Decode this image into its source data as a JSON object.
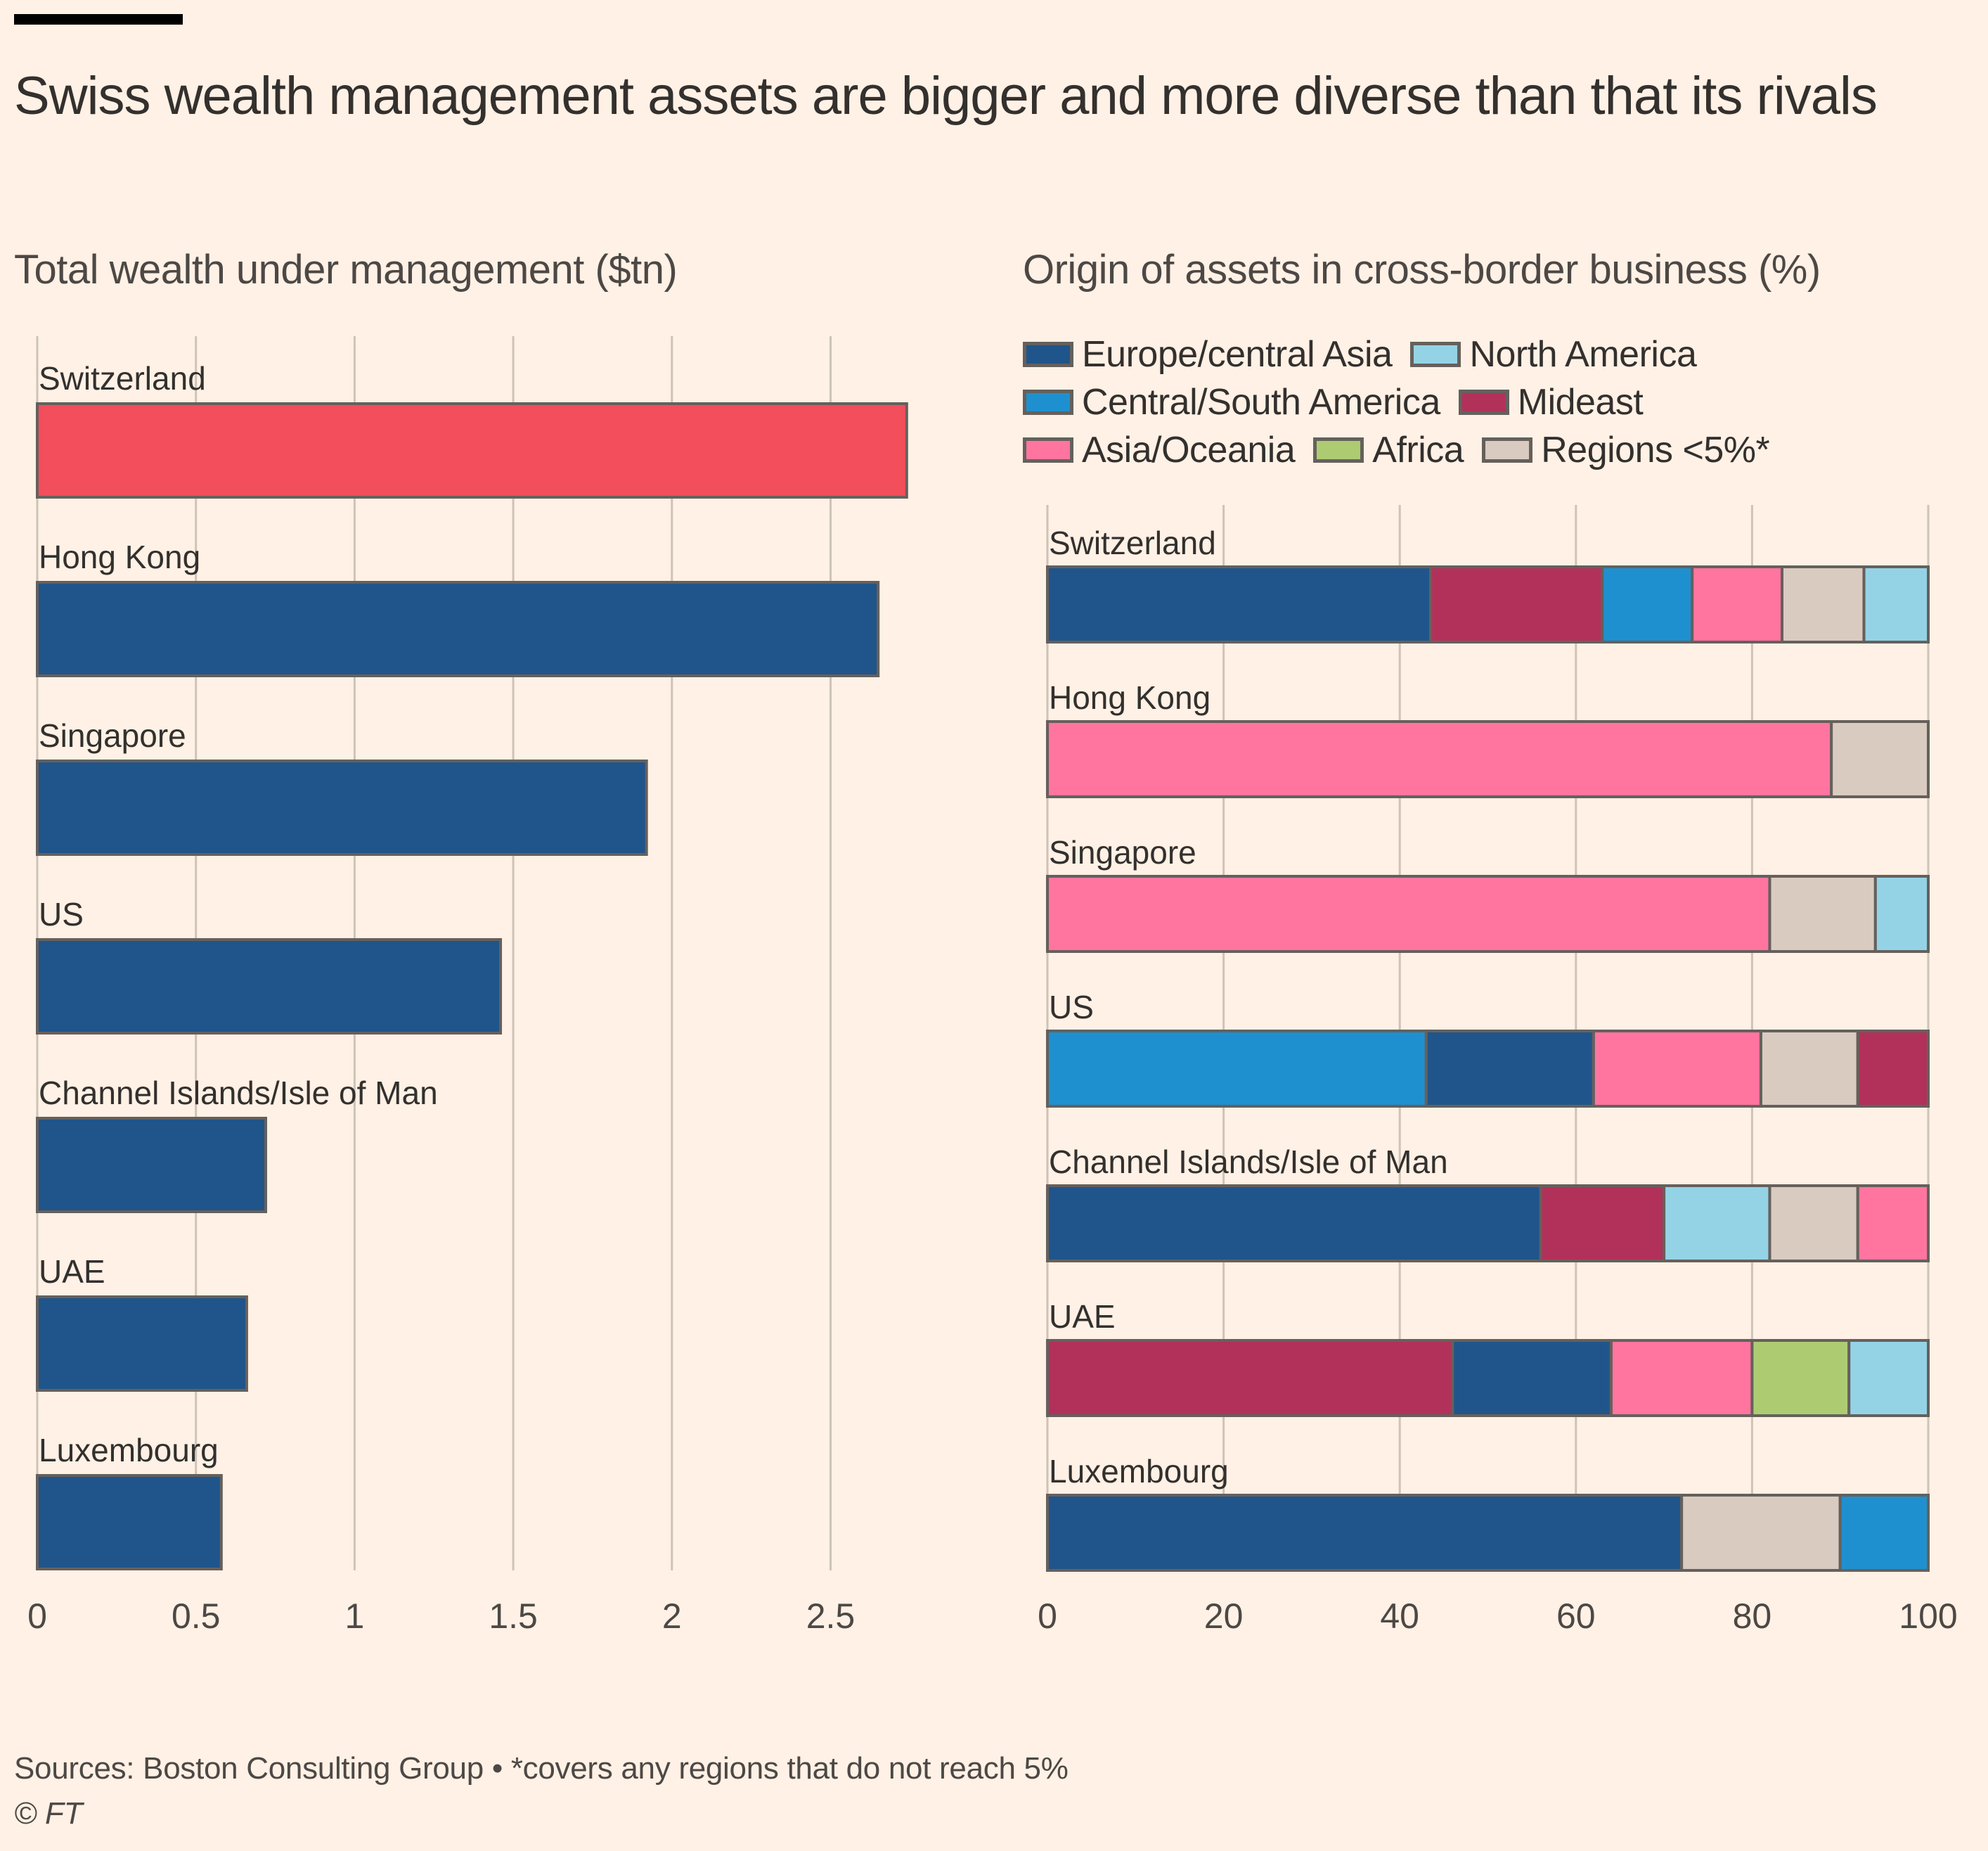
{
  "title": "Swiss wealth management assets are bigger and more diverse than that its rivals",
  "footer": {
    "sources": "Sources: Boston Consulting Group • *covers any regions that do not reach 5%",
    "copyright": "© FT"
  },
  "colors": {
    "background": "#fff1e5",
    "highlight": "#f24e5c",
    "primary": "#20558b",
    "gridline": "#cec3b7",
    "bar_stroke": "#66605c"
  },
  "legend": [
    {
      "key": "europe",
      "label": "Europe/central Asia",
      "color": "#20558b"
    },
    {
      "key": "north_america",
      "label": "North America",
      "color": "#94d3e6"
    },
    {
      "key": "cs_america",
      "label": "Central/South America",
      "color": "#1f90cf"
    },
    {
      "key": "mideast",
      "label": "Mideast",
      "color": "#b2315b"
    },
    {
      "key": "asia",
      "label": "Asia/Oceania",
      "color": "#ff75a0"
    },
    {
      "key": "africa",
      "label": "Africa",
      "color": "#adcc72"
    },
    {
      "key": "regions",
      "label": "Regions <5%*",
      "color": "#d9cbc0"
    }
  ],
  "chart_data": [
    {
      "type": "bar",
      "orientation": "horizontal",
      "title": "Total wealth under management ($tn)",
      "xlabel": "",
      "ylabel": "",
      "xlim": [
        0,
        2.85
      ],
      "xticks": [
        0,
        0.5,
        1,
        1.5,
        2,
        2.5
      ],
      "xtick_labels": [
        "0",
        "0.5",
        "1",
        "1.5",
        "2",
        "2.5"
      ],
      "grid": true,
      "categories": [
        "Switzerland",
        "Hong Kong",
        "Singapore",
        "US",
        "Channel Islands/Isle of Man",
        "UAE",
        "Luxembourg"
      ],
      "values": [
        2.74,
        2.65,
        1.92,
        1.46,
        0.72,
        0.66,
        0.58
      ],
      "highlight": "Switzerland"
    },
    {
      "type": "bar",
      "orientation": "horizontal",
      "stacked": true,
      "title": "Origin of assets in cross-border business (%)",
      "xlabel": "",
      "ylabel": "",
      "xlim": [
        0,
        100
      ],
      "xticks": [
        0,
        20,
        40,
        60,
        80,
        100
      ],
      "xtick_labels": [
        "0",
        "20",
        "40",
        "60",
        "80",
        "100"
      ],
      "grid": true,
      "legend_position": "top-left",
      "categories": [
        "Switzerland",
        "Hong Kong",
        "Singapore",
        "US",
        "Channel Islands/Isle of Man",
        "UAE",
        "Luxembourg"
      ],
      "stacks": [
        [
          {
            "series": "europe",
            "value": 43.5
          },
          {
            "series": "mideast",
            "value": 19.5
          },
          {
            "series": "cs_america",
            "value": 10.2
          },
          {
            "series": "asia",
            "value": 10.2
          },
          {
            "series": "regions",
            "value": 9.3
          },
          {
            "series": "north_america",
            "value": 7.3
          }
        ],
        [
          {
            "series": "asia",
            "value": 89
          },
          {
            "series": "regions",
            "value": 11
          }
        ],
        [
          {
            "series": "asia",
            "value": 82
          },
          {
            "series": "regions",
            "value": 12
          },
          {
            "series": "north_america",
            "value": 6
          }
        ],
        [
          {
            "series": "cs_america",
            "value": 43
          },
          {
            "series": "europe",
            "value": 19
          },
          {
            "series": "asia",
            "value": 19
          },
          {
            "series": "regions",
            "value": 11
          },
          {
            "series": "mideast",
            "value": 8
          }
        ],
        [
          {
            "series": "europe",
            "value": 56
          },
          {
            "series": "mideast",
            "value": 14
          },
          {
            "series": "north_america",
            "value": 12
          },
          {
            "series": "regions",
            "value": 10
          },
          {
            "series": "asia",
            "value": 8
          }
        ],
        [
          {
            "series": "mideast",
            "value": 46
          },
          {
            "series": "europe",
            "value": 18
          },
          {
            "series": "asia",
            "value": 16
          },
          {
            "series": "africa",
            "value": 11
          },
          {
            "series": "north_america",
            "value": 9
          }
        ],
        [
          {
            "series": "europe",
            "value": 72
          },
          {
            "series": "regions",
            "value": 18
          },
          {
            "series": "cs_america",
            "value": 10
          }
        ]
      ]
    }
  ]
}
